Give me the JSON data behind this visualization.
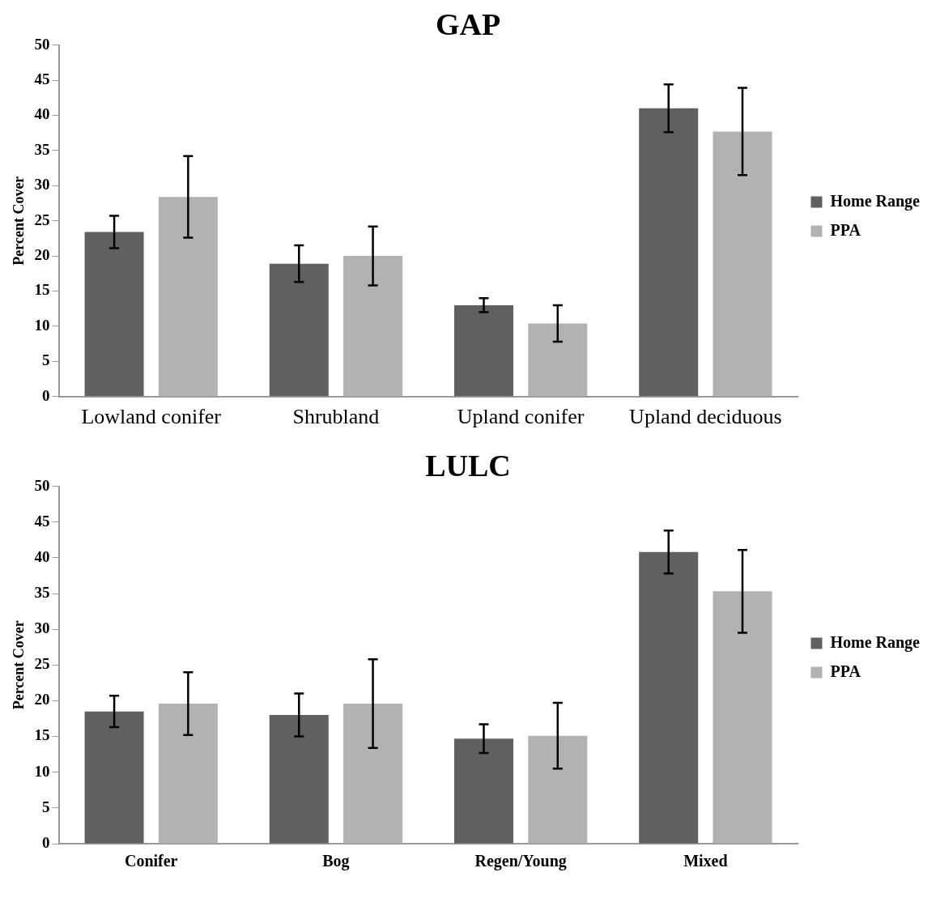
{
  "chart_data": [
    {
      "type": "bar",
      "title": "GAP",
      "ylabel": "Percent Cover",
      "categories": [
        "Lowland conifer",
        "Shrubland",
        "Upland conifer",
        "Upland deciduous"
      ],
      "series": [
        {
          "name": "Home Range",
          "color": "#606060",
          "values": [
            23.4,
            18.9,
            13.0,
            41.0
          ],
          "errors": [
            2.3,
            2.6,
            1.0,
            3.4
          ]
        },
        {
          "name": "PPA",
          "color": "#b2b2b2",
          "values": [
            28.4,
            20.0,
            10.4,
            37.7
          ],
          "errors": [
            5.8,
            4.2,
            2.6,
            6.2
          ]
        }
      ],
      "ylim": [
        0,
        50
      ],
      "yticks": [
        0,
        5,
        10,
        15,
        20,
        25,
        30,
        35,
        40,
        45,
        50
      ],
      "grid": false,
      "legend": "right"
    },
    {
      "type": "bar",
      "title": "LULC",
      "ylabel": "Percent Cover",
      "categories": [
        "Conifer",
        "Bog",
        "Regen/Young",
        "Mixed"
      ],
      "series": [
        {
          "name": "Home Range",
          "color": "#606060",
          "values": [
            18.5,
            18.0,
            14.7,
            40.8
          ],
          "errors": [
            2.2,
            3.0,
            2.0,
            3.0
          ]
        },
        {
          "name": "PPA",
          "color": "#b2b2b2",
          "values": [
            19.6,
            19.6,
            15.1,
            35.3
          ],
          "errors": [
            4.4,
            6.2,
            4.6,
            5.8
          ]
        }
      ],
      "ylim": [
        0,
        50
      ],
      "yticks": [
        0,
        5,
        10,
        15,
        20,
        25,
        30,
        35,
        40,
        45,
        50
      ],
      "grid": false,
      "legend": "right"
    }
  ]
}
